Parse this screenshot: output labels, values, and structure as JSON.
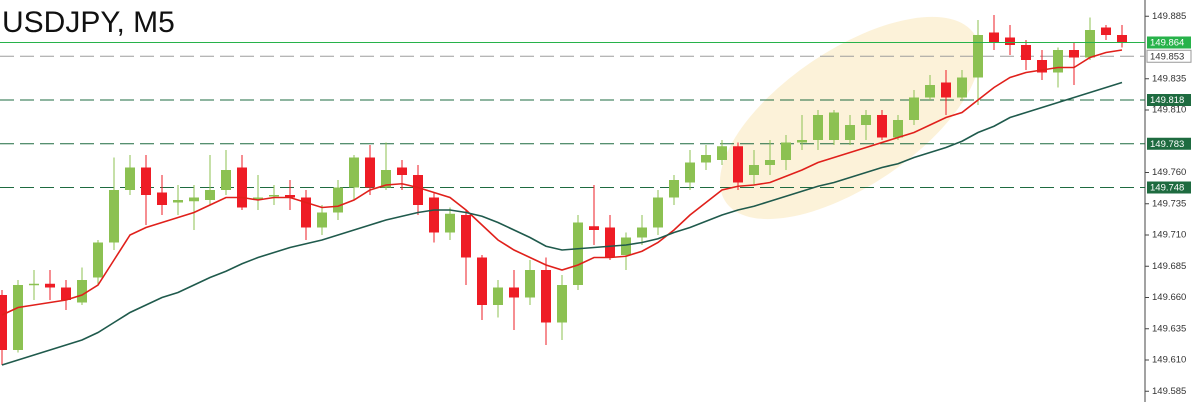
{
  "chart_data": {
    "type": "candlestick",
    "title": "USDJPY, M5",
    "ylim": [
      149.5764,
      149.898
    ],
    "yticks": [
      149.885,
      149.835,
      {
        "value": 149.81,
        "label": "149.810"
      },
      {
        "value": 149.76,
        "label": "149.760"
      },
      149.735,
      {
        "value": 149.71,
        "label": "149.710"
      },
      149.685,
      {
        "value": 149.66,
        "label": "149.660"
      },
      149.635,
      {
        "value": 149.61,
        "label": "149.610"
      },
      149.585
    ],
    "up_color": "#8cc152",
    "down_color": "#ee1c25",
    "open": [
      149.662,
      149.618,
      149.67,
      149.671,
      149.668,
      149.656,
      149.676,
      149.704,
      149.746,
      149.764,
      149.744,
      149.736,
      149.737,
      149.738,
      149.746,
      149.764,
      149.738,
      149.741,
      149.742,
      149.74,
      149.716,
      149.728,
      149.748,
      149.772,
      149.748,
      149.764,
      149.758,
      149.74,
      149.712,
      149.726,
      149.692,
      149.654,
      149.668,
      149.66,
      149.682,
      149.64,
      149.67,
      149.717,
      149.716,
      149.694,
      149.708,
      149.716,
      149.74,
      149.752,
      149.768,
      149.77,
      149.781,
      149.758,
      149.766,
      149.77,
      149.784,
      149.786,
      149.786,
      149.786,
      149.798,
      149.806,
      149.788,
      149.802,
      149.82,
      149.832,
      149.82,
      149.836,
      149.872,
      149.868,
      149.862,
      149.85,
      149.84,
      149.858,
      149.852,
      149.876,
      149.87
    ],
    "high": [
      149.666,
      149.674,
      149.682,
      149.682,
      149.674,
      149.684,
      149.706,
      149.772,
      149.774,
      149.774,
      149.758,
      149.75,
      149.75,
      149.774,
      149.778,
      149.774,
      149.758,
      149.75,
      149.754,
      149.746,
      149.734,
      149.754,
      149.774,
      149.782,
      149.784,
      149.77,
      149.766,
      149.744,
      149.732,
      149.73,
      149.694,
      149.674,
      149.682,
      149.69,
      149.692,
      149.678,
      149.726,
      149.75,
      149.726,
      149.712,
      149.726,
      149.746,
      149.758,
      149.778,
      149.782,
      149.786,
      149.784,
      149.778,
      149.786,
      149.79,
      149.806,
      149.81,
      149.81,
      149.806,
      149.81,
      149.81,
      149.806,
      149.826,
      149.838,
      149.842,
      149.842,
      149.882,
      149.886,
      149.878,
      149.866,
      149.858,
      149.86,
      149.864,
      149.884,
      149.878,
      149.878
    ],
    "low": [
      149.606,
      149.616,
      149.658,
      149.658,
      149.65,
      149.654,
      149.67,
      149.698,
      149.742,
      149.718,
      149.726,
      149.726,
      149.714,
      149.734,
      149.742,
      149.73,
      149.73,
      149.734,
      149.73,
      149.706,
      149.71,
      149.722,
      149.738,
      149.742,
      149.746,
      149.746,
      149.726,
      149.704,
      149.706,
      149.67,
      149.642,
      149.644,
      149.634,
      149.654,
      149.622,
      149.626,
      149.666,
      149.702,
      149.69,
      149.682,
      149.702,
      149.71,
      149.734,
      149.746,
      149.762,
      149.766,
      149.746,
      149.75,
      149.758,
      149.762,
      149.778,
      149.778,
      149.782,
      149.782,
      149.786,
      149.786,
      149.786,
      149.798,
      149.818,
      149.806,
      149.818,
      149.814,
      149.858,
      149.854,
      149.842,
      149.834,
      149.828,
      149.83,
      149.85,
      149.866,
      149.86
    ],
    "close": [
      149.618,
      149.67,
      149.671,
      149.668,
      149.658,
      149.674,
      149.704,
      149.746,
      149.764,
      149.742,
      149.734,
      149.738,
      149.74,
      149.746,
      149.762,
      149.732,
      149.74,
      149.742,
      149.74,
      149.716,
      149.728,
      149.748,
      149.772,
      149.748,
      149.762,
      149.758,
      149.734,
      149.712,
      149.727,
      149.692,
      149.654,
      149.668,
      149.66,
      149.682,
      149.64,
      149.67,
      149.72,
      149.714,
      149.692,
      149.708,
      149.716,
      149.74,
      149.754,
      149.768,
      149.774,
      149.781,
      149.752,
      149.766,
      149.77,
      149.784,
      149.786,
      149.806,
      149.808,
      149.798,
      149.806,
      149.788,
      149.802,
      149.82,
      149.83,
      149.82,
      149.836,
      149.87,
      149.864,
      149.862,
      149.85,
      149.84,
      149.858,
      149.852,
      149.874,
      149.87,
      149.864
    ],
    "lines": [
      {
        "color": "#e0201b",
        "values": [
          149.646,
          149.652,
          149.654,
          149.656,
          149.658,
          149.662,
          149.67,
          149.69,
          149.71,
          149.716,
          149.72,
          149.724,
          149.728,
          149.734,
          149.74,
          149.74,
          149.738,
          149.74,
          149.74,
          149.736,
          149.732,
          149.733,
          149.738,
          149.746,
          149.75,
          149.751,
          149.748,
          149.744,
          149.74,
          149.73,
          149.718,
          149.706,
          149.698,
          149.692,
          149.686,
          149.682,
          149.686,
          149.692,
          149.692,
          149.693,
          149.697,
          149.704,
          149.714,
          149.726,
          149.736,
          149.746,
          149.749,
          149.75,
          149.752,
          149.757,
          149.762,
          149.768,
          149.772,
          149.776,
          149.78,
          149.784,
          149.788,
          149.792,
          149.798,
          149.804,
          149.808,
          149.818,
          149.828,
          149.836,
          149.84,
          149.842,
          149.844,
          149.844,
          149.852,
          149.856,
          149.858
        ]
      },
      {
        "color": "#1f5a4c",
        "values": [
          149.606,
          149.61,
          149.614,
          149.618,
          149.622,
          149.626,
          149.632,
          149.64,
          149.648,
          149.654,
          149.66,
          149.664,
          149.67,
          149.676,
          149.681,
          149.687,
          149.692,
          149.696,
          149.7,
          149.703,
          149.706,
          149.71,
          149.714,
          149.718,
          149.722,
          149.725,
          149.728,
          149.73,
          149.73,
          149.728,
          149.725,
          149.72,
          149.714,
          149.708,
          149.701,
          149.698,
          149.699,
          149.7,
          149.701,
          149.702,
          149.704,
          149.707,
          149.712,
          149.716,
          149.721,
          149.726,
          149.73,
          149.733,
          149.737,
          149.741,
          149.745,
          149.749,
          149.752,
          149.756,
          149.76,
          149.764,
          149.767,
          149.772,
          149.776,
          149.78,
          149.785,
          149.792,
          149.797,
          149.804,
          149.808,
          149.812,
          149.816,
          149.82,
          149.824,
          149.828,
          149.832
        ]
      }
    ],
    "levels": [
      {
        "value": 149.853,
        "color": "#9e9e9e"
      },
      {
        "value": 149.818,
        "color": "#1e6b40"
      },
      {
        "value": 149.783,
        "color": "#1e6b40"
      },
      {
        "value": 149.748,
        "color": "#1e6b40"
      }
    ],
    "current_price": 149.864,
    "current_color": "#27b24a"
  }
}
